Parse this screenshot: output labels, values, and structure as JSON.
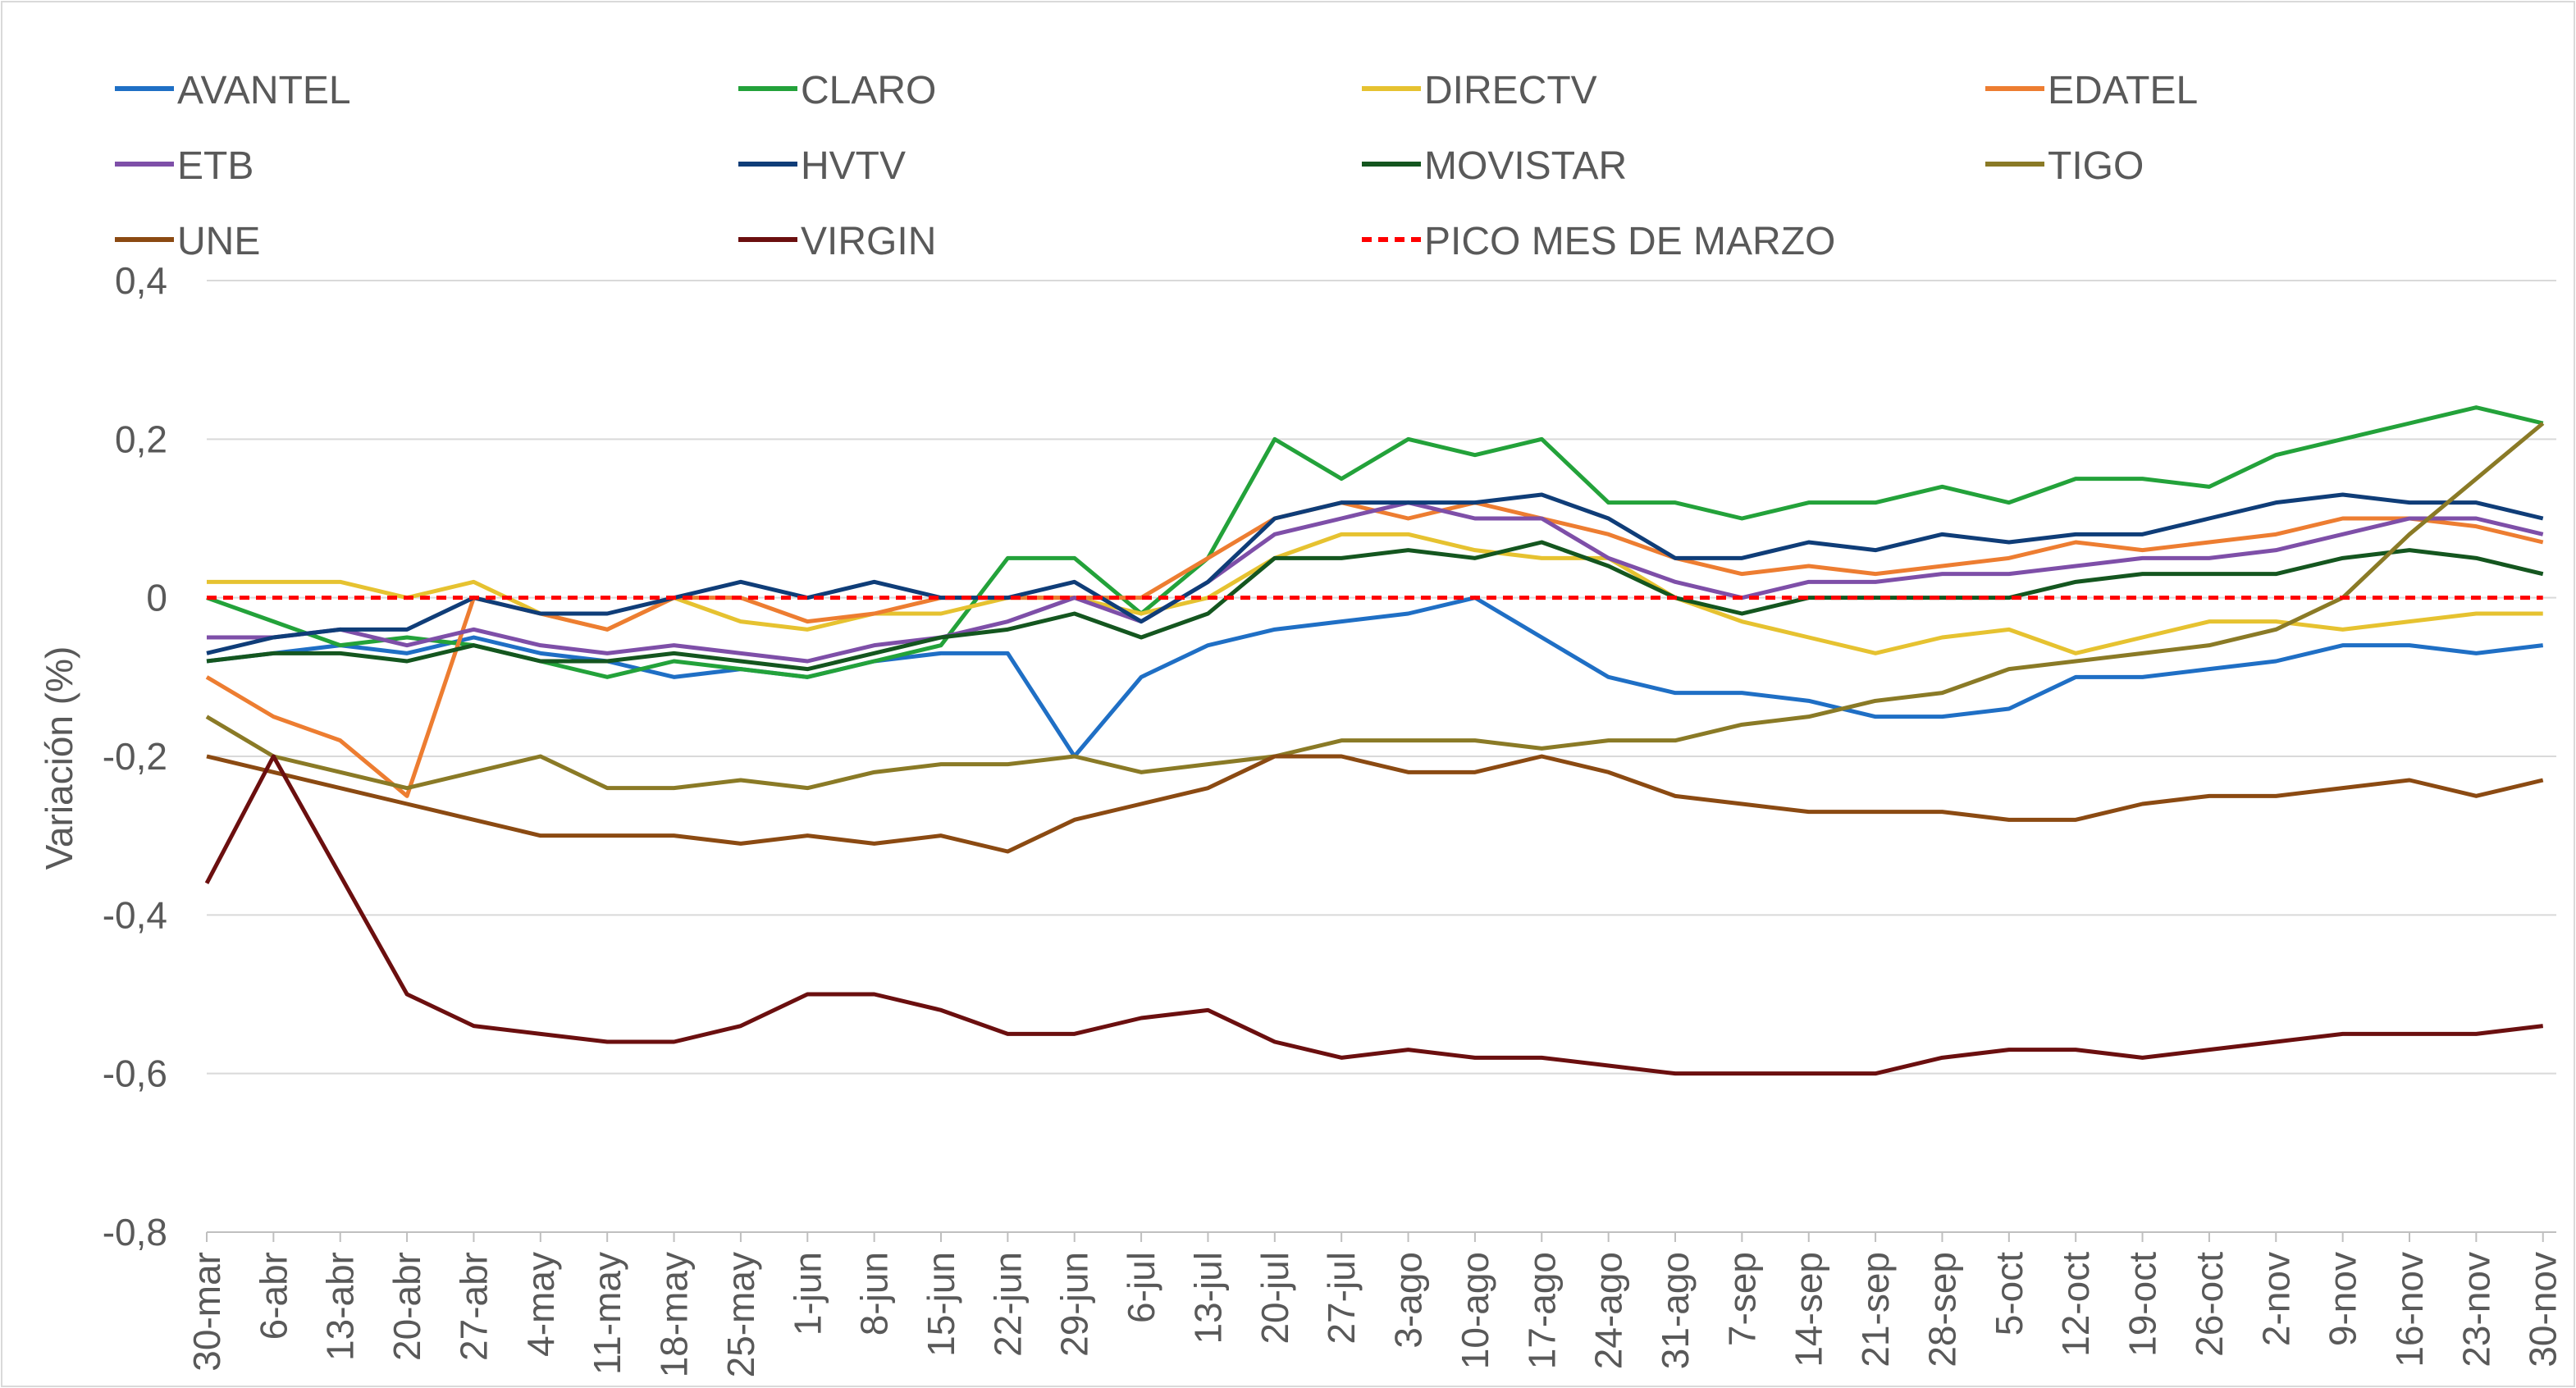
{
  "chart_data": {
    "type": "line",
    "y_label": "Variación (%)",
    "categories": [
      "30-mar",
      "6-abr",
      "13-abr",
      "20-abr",
      "27-abr",
      "4-may",
      "11-may",
      "18-may",
      "25-may",
      "1-jun",
      "8-jun",
      "15-jun",
      "22-jun",
      "29-jun",
      "6-jul",
      "13-jul",
      "20-jul",
      "27-jul",
      "3-ago",
      "10-ago",
      "17-ago",
      "24-ago",
      "31-ago",
      "7-sep",
      "14-sep",
      "21-sep",
      "28-sep",
      "5-oct",
      "12-oct",
      "19-oct",
      "26-oct",
      "2-nov",
      "9-nov",
      "16-nov",
      "23-nov",
      "30-nov"
    ],
    "ylim": [
      -0.8,
      0.4
    ],
    "yticks": [
      {
        "value": -0.8,
        "label": "-0,8"
      },
      {
        "value": -0.6,
        "label": "-0,6"
      },
      {
        "value": -0.4,
        "label": "-0,4"
      },
      {
        "value": -0.2,
        "label": "-0,2"
      },
      0,
      {
        "value": 0.2,
        "label": "0,2"
      },
      {
        "value": 0.4,
        "label": "0,4"
      }
    ],
    "grid": true,
    "legend": "top",
    "series": [
      {
        "name": "AVANTEL",
        "color": "#1f6fc5",
        "values": [
          -0.08,
          -0.07,
          -0.06,
          -0.07,
          -0.05,
          -0.07,
          -0.08,
          -0.1,
          -0.09,
          -0.1,
          -0.08,
          -0.07,
          -0.07,
          -0.2,
          -0.1,
          -0.06,
          -0.04,
          -0.03,
          -0.02,
          0.0,
          -0.05,
          -0.1,
          -0.12,
          -0.12,
          -0.13,
          -0.15,
          -0.15,
          -0.14,
          -0.1,
          -0.1,
          -0.09,
          -0.08,
          -0.06,
          -0.06,
          -0.07,
          -0.06
        ]
      },
      {
        "name": "CLARO",
        "color": "#23a23a",
        "values": [
          0.0,
          -0.03,
          -0.06,
          -0.05,
          -0.06,
          -0.08,
          -0.1,
          -0.08,
          -0.09,
          -0.1,
          -0.08,
          -0.06,
          0.05,
          0.05,
          -0.02,
          0.05,
          0.2,
          0.15,
          0.2,
          0.18,
          0.2,
          0.12,
          0.12,
          0.1,
          0.12,
          0.12,
          0.14,
          0.12,
          0.15,
          0.15,
          0.14,
          0.18,
          0.2,
          0.22,
          0.24,
          0.22
        ]
      },
      {
        "name": "DIRECTV",
        "color": "#e6c230",
        "values": [
          0.02,
          0.02,
          0.02,
          0.0,
          0.02,
          -0.02,
          -0.04,
          0.0,
          -0.03,
          -0.04,
          -0.02,
          -0.02,
          0.0,
          0.0,
          -0.02,
          0.0,
          0.05,
          0.08,
          0.08,
          0.06,
          0.05,
          0.05,
          0.0,
          -0.03,
          -0.05,
          -0.07,
          -0.05,
          -0.04,
          -0.07,
          -0.05,
          -0.03,
          -0.03,
          -0.04,
          -0.03,
          -0.02,
          -0.02
        ]
      },
      {
        "name": "EDATEL",
        "color": "#ed7d31",
        "values": [
          -0.1,
          -0.15,
          -0.18,
          -0.25,
          0.0,
          -0.02,
          -0.04,
          0.0,
          0.0,
          -0.03,
          -0.02,
          0.0,
          0.0,
          0.0,
          0.0,
          0.05,
          0.1,
          0.12,
          0.1,
          0.12,
          0.1,
          0.08,
          0.05,
          0.03,
          0.04,
          0.03,
          0.04,
          0.05,
          0.07,
          0.06,
          0.07,
          0.08,
          0.1,
          0.1,
          0.09,
          0.07
        ]
      },
      {
        "name": "ETB",
        "color": "#7e4fa8",
        "values": [
          -0.05,
          -0.05,
          -0.04,
          -0.06,
          -0.04,
          -0.06,
          -0.07,
          -0.06,
          -0.07,
          -0.08,
          -0.06,
          -0.05,
          -0.03,
          0.0,
          -0.03,
          0.02,
          0.08,
          0.1,
          0.12,
          0.1,
          0.1,
          0.05,
          0.02,
          0.0,
          0.02,
          0.02,
          0.03,
          0.03,
          0.04,
          0.05,
          0.05,
          0.06,
          0.08,
          0.1,
          0.1,
          0.08
        ]
      },
      {
        "name": "HVTV",
        "color": "#0f3d78",
        "values": [
          -0.07,
          -0.05,
          -0.04,
          -0.04,
          0.0,
          -0.02,
          -0.02,
          0.0,
          0.02,
          0.0,
          0.02,
          0.0,
          0.0,
          0.02,
          -0.03,
          0.02,
          0.1,
          0.12,
          0.12,
          0.12,
          0.13,
          0.1,
          0.05,
          0.05,
          0.07,
          0.06,
          0.08,
          0.07,
          0.08,
          0.08,
          0.1,
          0.12,
          0.13,
          0.12,
          0.12,
          0.1
        ]
      },
      {
        "name": "MOVISTAR",
        "color": "#14561f",
        "values": [
          -0.08,
          -0.07,
          -0.07,
          -0.08,
          -0.06,
          -0.08,
          -0.08,
          -0.07,
          -0.08,
          -0.09,
          -0.07,
          -0.05,
          -0.04,
          -0.02,
          -0.05,
          -0.02,
          0.05,
          0.05,
          0.06,
          0.05,
          0.07,
          0.04,
          0.0,
          -0.02,
          0.0,
          0.0,
          0.0,
          0.0,
          0.02,
          0.03,
          0.03,
          0.03,
          0.05,
          0.06,
          0.05,
          0.03
        ]
      },
      {
        "name": "TIGO",
        "color": "#8a7a26",
        "values": [
          -0.15,
          -0.2,
          -0.22,
          -0.24,
          -0.22,
          -0.2,
          -0.24,
          -0.24,
          -0.23,
          -0.24,
          -0.22,
          -0.21,
          -0.21,
          -0.2,
          -0.22,
          -0.21,
          -0.2,
          -0.18,
          -0.18,
          -0.18,
          -0.19,
          -0.18,
          -0.18,
          -0.16,
          -0.15,
          -0.13,
          -0.12,
          -0.09,
          -0.08,
          -0.07,
          -0.06,
          -0.04,
          0.0,
          0.08,
          0.15,
          0.22
        ]
      },
      {
        "name": "UNE",
        "color": "#8b4a12",
        "values": [
          -0.2,
          -0.22,
          -0.24,
          -0.26,
          -0.28,
          -0.3,
          -0.3,
          -0.3,
          -0.31,
          -0.3,
          -0.31,
          -0.3,
          -0.32,
          -0.28,
          -0.26,
          -0.24,
          -0.2,
          -0.2,
          -0.22,
          -0.22,
          -0.2,
          -0.22,
          -0.25,
          -0.26,
          -0.27,
          -0.27,
          -0.27,
          -0.28,
          -0.28,
          -0.26,
          -0.25,
          -0.25,
          -0.24,
          -0.23,
          -0.25,
          -0.23
        ]
      },
      {
        "name": "VIRGIN",
        "color": "#6b0f0f",
        "values": [
          -0.36,
          -0.2,
          -0.35,
          -0.5,
          -0.54,
          -0.55,
          -0.56,
          -0.56,
          -0.54,
          -0.5,
          -0.5,
          -0.52,
          -0.55,
          -0.55,
          -0.53,
          -0.52,
          -0.56,
          -0.58,
          -0.57,
          -0.58,
          -0.58,
          -0.59,
          -0.6,
          -0.6,
          -0.6,
          -0.6,
          -0.58,
          -0.57,
          -0.57,
          -0.58,
          -0.57,
          -0.56,
          -0.55,
          -0.55,
          -0.55,
          -0.54
        ]
      },
      {
        "name": "PICO MES DE MARZO",
        "color": "#ff0000",
        "line_style": "dashed",
        "values": [
          0,
          0,
          0,
          0,
          0,
          0,
          0,
          0,
          0,
          0,
          0,
          0,
          0,
          0,
          0,
          0,
          0,
          0,
          0,
          0,
          0,
          0,
          0,
          0,
          0,
          0,
          0,
          0,
          0,
          0,
          0,
          0,
          0,
          0,
          0,
          0
        ]
      }
    ]
  }
}
